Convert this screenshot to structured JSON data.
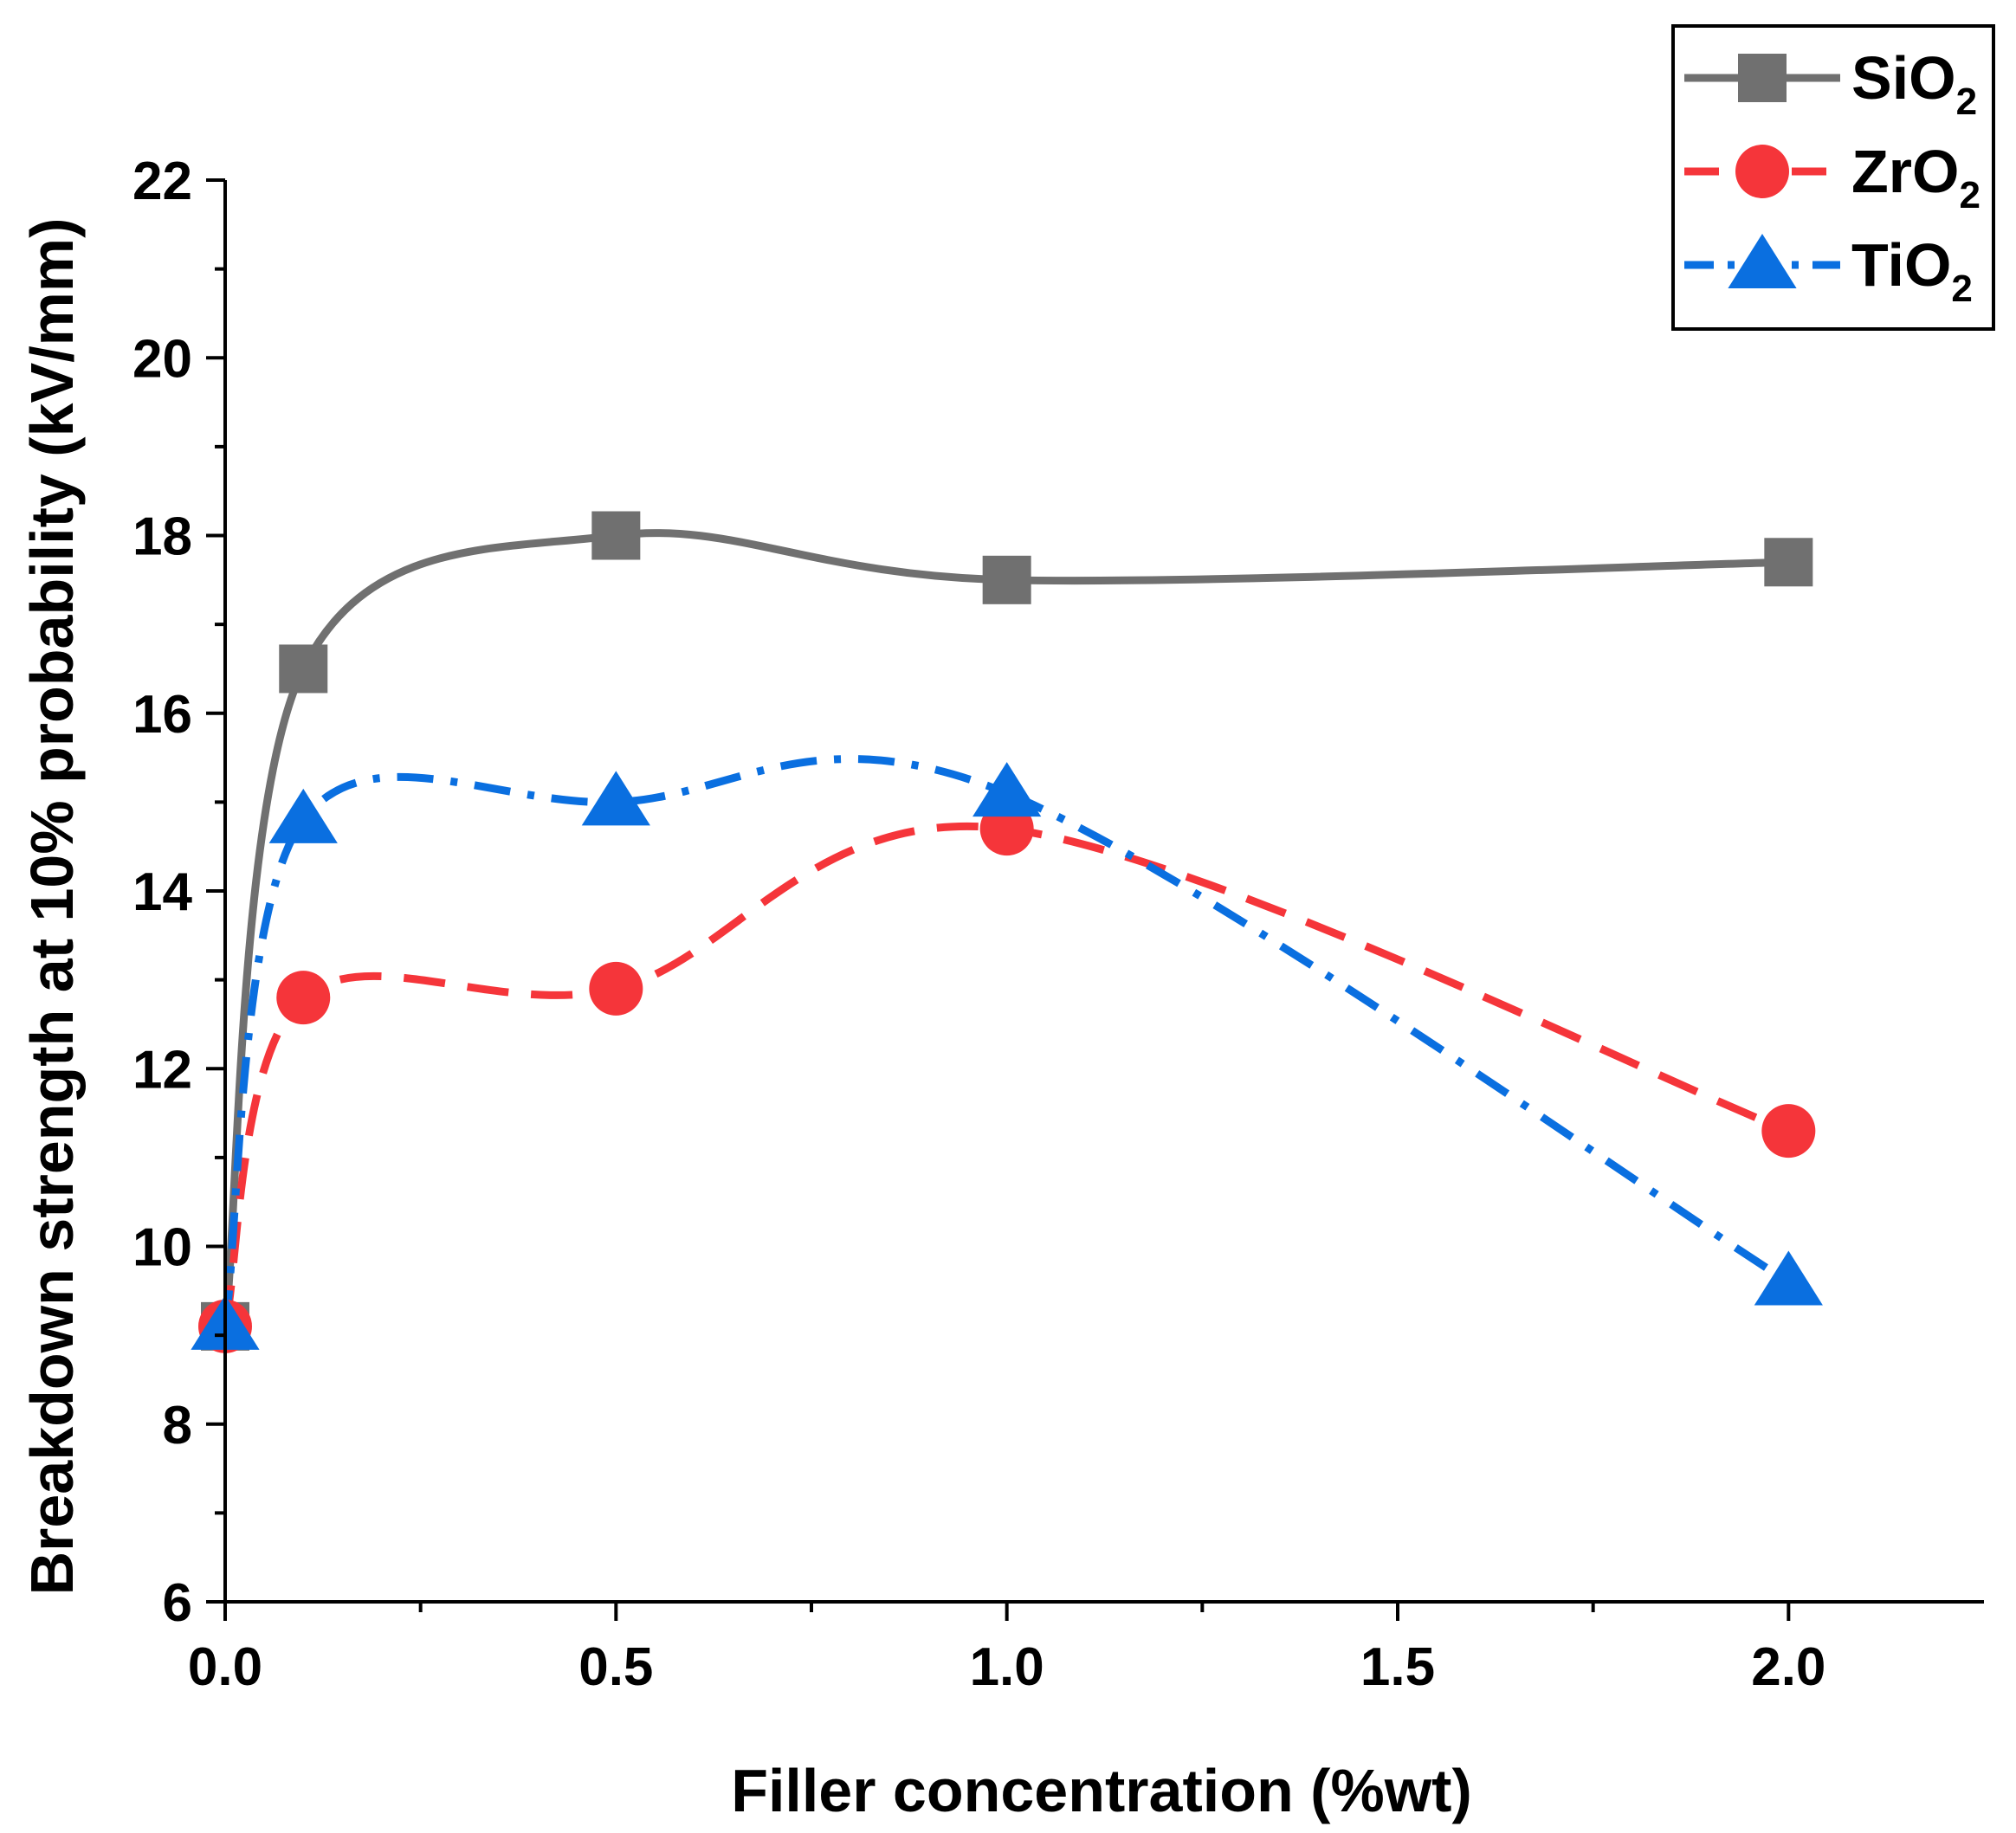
{
  "chart_data": {
    "type": "line",
    "title": "",
    "xlabel": "Filler concentration (%wt)",
    "ylabel": "Breakdown strength at 10% probability (kV/mm)",
    "xlim": [
      0,
      2.25
    ],
    "ylim": [
      6,
      22
    ],
    "xticks": [
      0.0,
      0.5,
      1.0,
      1.5,
      2.0
    ],
    "xtick_labels": [
      "0.0",
      "0.5",
      "1.0",
      "1.5",
      "2.0"
    ],
    "xminor": [
      0.25,
      0.75,
      1.25,
      1.75
    ],
    "yticks": [
      6,
      8,
      10,
      12,
      14,
      16,
      18,
      20,
      22
    ],
    "ytick_labels": [
      "6",
      "8",
      "10",
      "12",
      "14",
      "16",
      "18",
      "20",
      "22"
    ],
    "yminor": [
      7,
      9,
      11,
      13,
      15,
      17,
      19,
      21
    ],
    "grid": false,
    "legend_position": "top-right",
    "series": [
      {
        "name": "SiO",
        "subscript": "2",
        "color": "#707070",
        "marker": "square",
        "line_style": "solid",
        "x": [
          0,
          0.1,
          0.5,
          1.0,
          2.0
        ],
        "values": [
          9.1,
          16.5,
          18.0,
          17.5,
          17.7
        ]
      },
      {
        "name": "ZrO",
        "subscript": "2",
        "color": "#f5353a",
        "marker": "circle",
        "line_style": "dashed",
        "x": [
          0,
          0.1,
          0.5,
          1.0,
          2.0
        ],
        "values": [
          9.1,
          12.8,
          12.9,
          14.7,
          11.3
        ]
      },
      {
        "name": "TiO",
        "subscript": "2",
        "color": "#0a6fe0",
        "marker": "triangle",
        "line_style": "dashdot",
        "x": [
          0,
          0.1,
          0.5,
          1.0,
          2.0
        ],
        "values": [
          9.1,
          14.8,
          15.0,
          15.1,
          9.6
        ]
      }
    ]
  }
}
